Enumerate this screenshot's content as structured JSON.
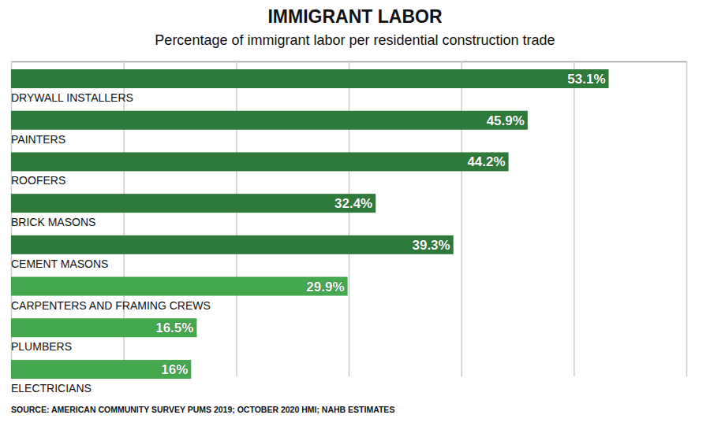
{
  "chart_data": {
    "type": "bar",
    "orientation": "horizontal",
    "title": "IMMIGRANT LABOR",
    "subtitle": "Percentage of immigrant labor per residential construction trade",
    "categories": [
      "DRYWALL INSTALLERS",
      "PAINTERS",
      "ROOFERS",
      "BRICK MASONS",
      "CEMENT MASONS",
      "CARPENTERS AND FRAMING CREWS",
      "PLUMBERS",
      "ELECTRICIANS"
    ],
    "values": [
      53.1,
      45.9,
      44.2,
      32.4,
      39.3,
      29.9,
      16.5,
      16
    ],
    "value_labels": [
      "53.1%",
      "45.9%",
      "44.2%",
      "32.4%",
      "39.3%",
      "29.9%",
      "16.5%",
      "16%"
    ],
    "colors": [
      "#2d7a3a",
      "#2d7a3a",
      "#2d7a3a",
      "#2d7a3a",
      "#2d7a3a",
      "#45a84f",
      "#45a84f",
      "#45a84f"
    ],
    "xlim": [
      0,
      60
    ],
    "xticks": [
      0,
      10,
      20,
      30,
      40,
      50,
      60
    ],
    "grid": true,
    "data_labels": true,
    "tick_labels": false,
    "source": "SOURCE: AMERICAN COMMUNITY SURVEY PUMS 2019; OCTOBER 2020 HMI; NAHB ESTIMATES"
  }
}
